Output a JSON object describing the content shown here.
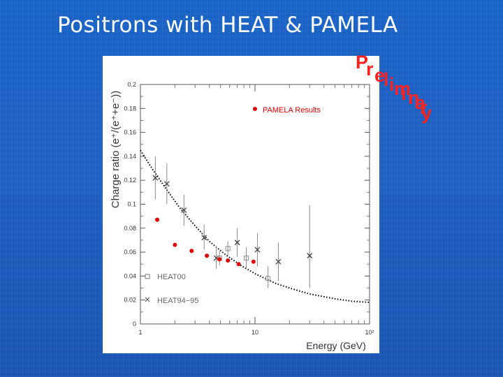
{
  "slide": {
    "title": "Positrons with HEAT & PAMELA",
    "stamp": "Preliminary"
  },
  "colors": {
    "pamela": "#e00000",
    "heat": "#444444",
    "model": "#000000",
    "stamp": "#ff2020"
  },
  "chart_data": {
    "type": "scatter",
    "xlabel": "Energy (GeV)",
    "ylabel": "Charge ratio (e⁺/(e⁺+e⁻))",
    "x_scale": "log",
    "xlim": [
      1,
      100
    ],
    "ylim": [
      0,
      0.2
    ],
    "x_ticks": [
      {
        "value": 1,
        "label": "1"
      },
      {
        "value": 10,
        "label": "10"
      },
      {
        "value": 100,
        "label": "10²"
      }
    ],
    "y_ticks": [
      {
        "value": 0,
        "label": "0"
      },
      {
        "value": 0.02,
        "label": "0.02"
      },
      {
        "value": 0.04,
        "label": "0.04"
      },
      {
        "value": 0.06,
        "label": "0.06"
      },
      {
        "value": 0.08,
        "label": "0.08"
      },
      {
        "value": 0.1,
        "label": "0.1"
      },
      {
        "value": 0.12,
        "label": "0.12"
      },
      {
        "value": 0.14,
        "label": "0.14"
      },
      {
        "value": 0.16,
        "label": "0.16"
      },
      {
        "value": 0.18,
        "label": "0.18"
      },
      {
        "value": 0.2,
        "label": "0.2"
      }
    ],
    "series": [
      {
        "name": "PAMELA Results",
        "marker": "filled-circle",
        "points": [
          {
            "x": 1.4,
            "y": 0.087
          },
          {
            "x": 2.0,
            "y": 0.066
          },
          {
            "x": 2.8,
            "y": 0.061
          },
          {
            "x": 3.8,
            "y": 0.057
          },
          {
            "x": 4.9,
            "y": 0.054
          },
          {
            "x": 5.8,
            "y": 0.053
          },
          {
            "x": 7.2,
            "y": 0.05
          },
          {
            "x": 9.7,
            "y": 0.052
          }
        ]
      },
      {
        "name": "HEAT00",
        "marker": "open-square",
        "points": [
          {
            "x": 4.9,
            "y": 0.055,
            "lo": 0.049,
            "hi": 0.061
          },
          {
            "x": 5.8,
            "y": 0.063,
            "lo": 0.057,
            "hi": 0.069
          },
          {
            "x": 8.4,
            "y": 0.055,
            "lo": 0.047,
            "hi": 0.064
          },
          {
            "x": 13.0,
            "y": 0.038,
            "lo": 0.03,
            "hi": 0.048
          }
        ]
      },
      {
        "name": "HEAT94−95",
        "marker": "cross",
        "points": [
          {
            "x": 1.35,
            "y": 0.122,
            "lo": 0.104,
            "hi": 0.14
          },
          {
            "x": 1.7,
            "y": 0.117,
            "lo": 0.1,
            "hi": 0.134
          },
          {
            "x": 2.4,
            "y": 0.095,
            "lo": 0.082,
            "hi": 0.108
          },
          {
            "x": 3.6,
            "y": 0.072,
            "lo": 0.062,
            "hi": 0.083
          },
          {
            "x": 4.6,
            "y": 0.055,
            "lo": 0.046,
            "hi": 0.065
          },
          {
            "x": 7.0,
            "y": 0.068,
            "lo": 0.056,
            "hi": 0.08
          },
          {
            "x": 10.5,
            "y": 0.062,
            "lo": 0.048,
            "hi": 0.076
          },
          {
            "x": 16.0,
            "y": 0.052,
            "lo": 0.036,
            "hi": 0.068
          },
          {
            "x": 30.0,
            "y": 0.057,
            "lo": 0.03,
            "hi": 0.099
          }
        ]
      },
      {
        "name": "",
        "line": "dotted",
        "points": [
          {
            "x": 1.0,
            "y": 0.145
          },
          {
            "x": 1.3,
            "y": 0.128
          },
          {
            "x": 1.7,
            "y": 0.112
          },
          {
            "x": 2.2,
            "y": 0.097
          },
          {
            "x": 3.0,
            "y": 0.082
          },
          {
            "x": 4.0,
            "y": 0.069
          },
          {
            "x": 5.5,
            "y": 0.058
          },
          {
            "x": 7.5,
            "y": 0.049
          },
          {
            "x": 10.0,
            "y": 0.042
          },
          {
            "x": 15.0,
            "y": 0.034
          },
          {
            "x": 20.0,
            "y": 0.03
          },
          {
            "x": 30.0,
            "y": 0.025
          },
          {
            "x": 50.0,
            "y": 0.021
          },
          {
            "x": 70.0,
            "y": 0.019
          },
          {
            "x": 100.0,
            "y": 0.018
          }
        ]
      }
    ]
  }
}
